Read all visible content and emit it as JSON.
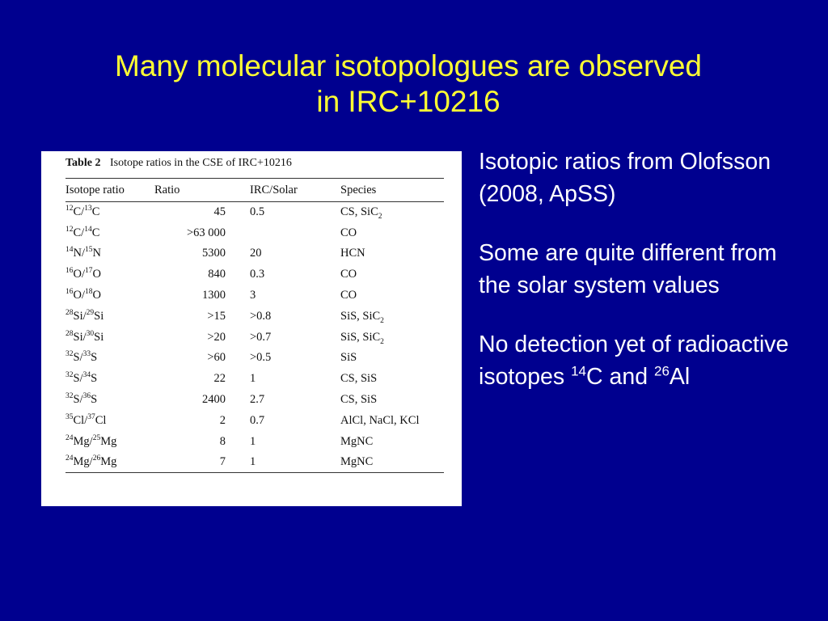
{
  "slide": {
    "title_line1": "Many molecular isotopologues are observed",
    "title_line2": "in IRC+10216"
  },
  "table": {
    "label": "Table 2",
    "caption": "Isotope ratios in the CSE of IRC+10216",
    "headers": [
      "Isotope ratio",
      "Ratio",
      "IRC/Solar",
      "Species"
    ],
    "rows": [
      {
        "a_num": "12",
        "a": "C",
        "b_num": "13",
        "b": "C",
        "ratio": "45",
        "irc": "0.5",
        "species": "CS, SiC",
        "species_sub": "2"
      },
      {
        "a_num": "12",
        "a": "C",
        "b_num": "14",
        "b": "C",
        "ratio": ">63 000",
        "irc": "",
        "species": "CO",
        "species_sub": ""
      },
      {
        "a_num": "14",
        "a": "N",
        "b_num": "15",
        "b": "N",
        "ratio": "5300",
        "irc": "20",
        "species": "HCN",
        "species_sub": ""
      },
      {
        "a_num": "16",
        "a": "O",
        "b_num": "17",
        "b": "O",
        "ratio": "840",
        "irc": "0.3",
        "species": "CO",
        "species_sub": ""
      },
      {
        "a_num": "16",
        "a": "O",
        "b_num": "18",
        "b": "O",
        "ratio": "1300",
        "irc": "3",
        "species": "CO",
        "species_sub": ""
      },
      {
        "a_num": "28",
        "a": "Si",
        "b_num": "29",
        "b": "Si",
        "ratio": ">15",
        "irc": ">0.8",
        "species": "SiS, SiC",
        "species_sub": "2"
      },
      {
        "a_num": "28",
        "a": "Si",
        "b_num": "30",
        "b": "Si",
        "ratio": ">20",
        "irc": ">0.7",
        "species": "SiS, SiC",
        "species_sub": "2"
      },
      {
        "a_num": "32",
        "a": "S",
        "b_num": "33",
        "b": "S",
        "ratio": ">60",
        "irc": ">0.5",
        "species": "SiS",
        "species_sub": ""
      },
      {
        "a_num": "32",
        "a": "S",
        "b_num": "34",
        "b": "S",
        "ratio": "22",
        "irc": "1",
        "species": "CS, SiS",
        "species_sub": ""
      },
      {
        "a_num": "32",
        "a": "S",
        "b_num": "36",
        "b": "S",
        "ratio": "2400",
        "irc": "2.7",
        "species": "CS, SiS",
        "species_sub": ""
      },
      {
        "a_num": "35",
        "a": "Cl",
        "b_num": "37",
        "b": "Cl",
        "ratio": "2",
        "irc": "0.7",
        "species": "AlCl, NaCl, KCl",
        "species_sub": ""
      },
      {
        "a_num": "24",
        "a": "Mg",
        "b_num": "25",
        "b": "Mg",
        "ratio": "8",
        "irc": "1",
        "species": "MgNC",
        "species_sub": ""
      },
      {
        "a_num": "24",
        "a": "Mg",
        "b_num": "26",
        "b": "Mg",
        "ratio": "7",
        "irc": "1",
        "species": "MgNC",
        "species_sub": ""
      }
    ]
  },
  "notes": {
    "p1": "Isotopic ratios from Olofsson (2008, ApSS)",
    "p2": "Some are quite different from the solar system values",
    "p3_pre": "No detection yet of radioactive isotopes ",
    "p3_sup1": "14",
    "p3_mid": "C and ",
    "p3_sup2": "26",
    "p3_end": "Al"
  }
}
